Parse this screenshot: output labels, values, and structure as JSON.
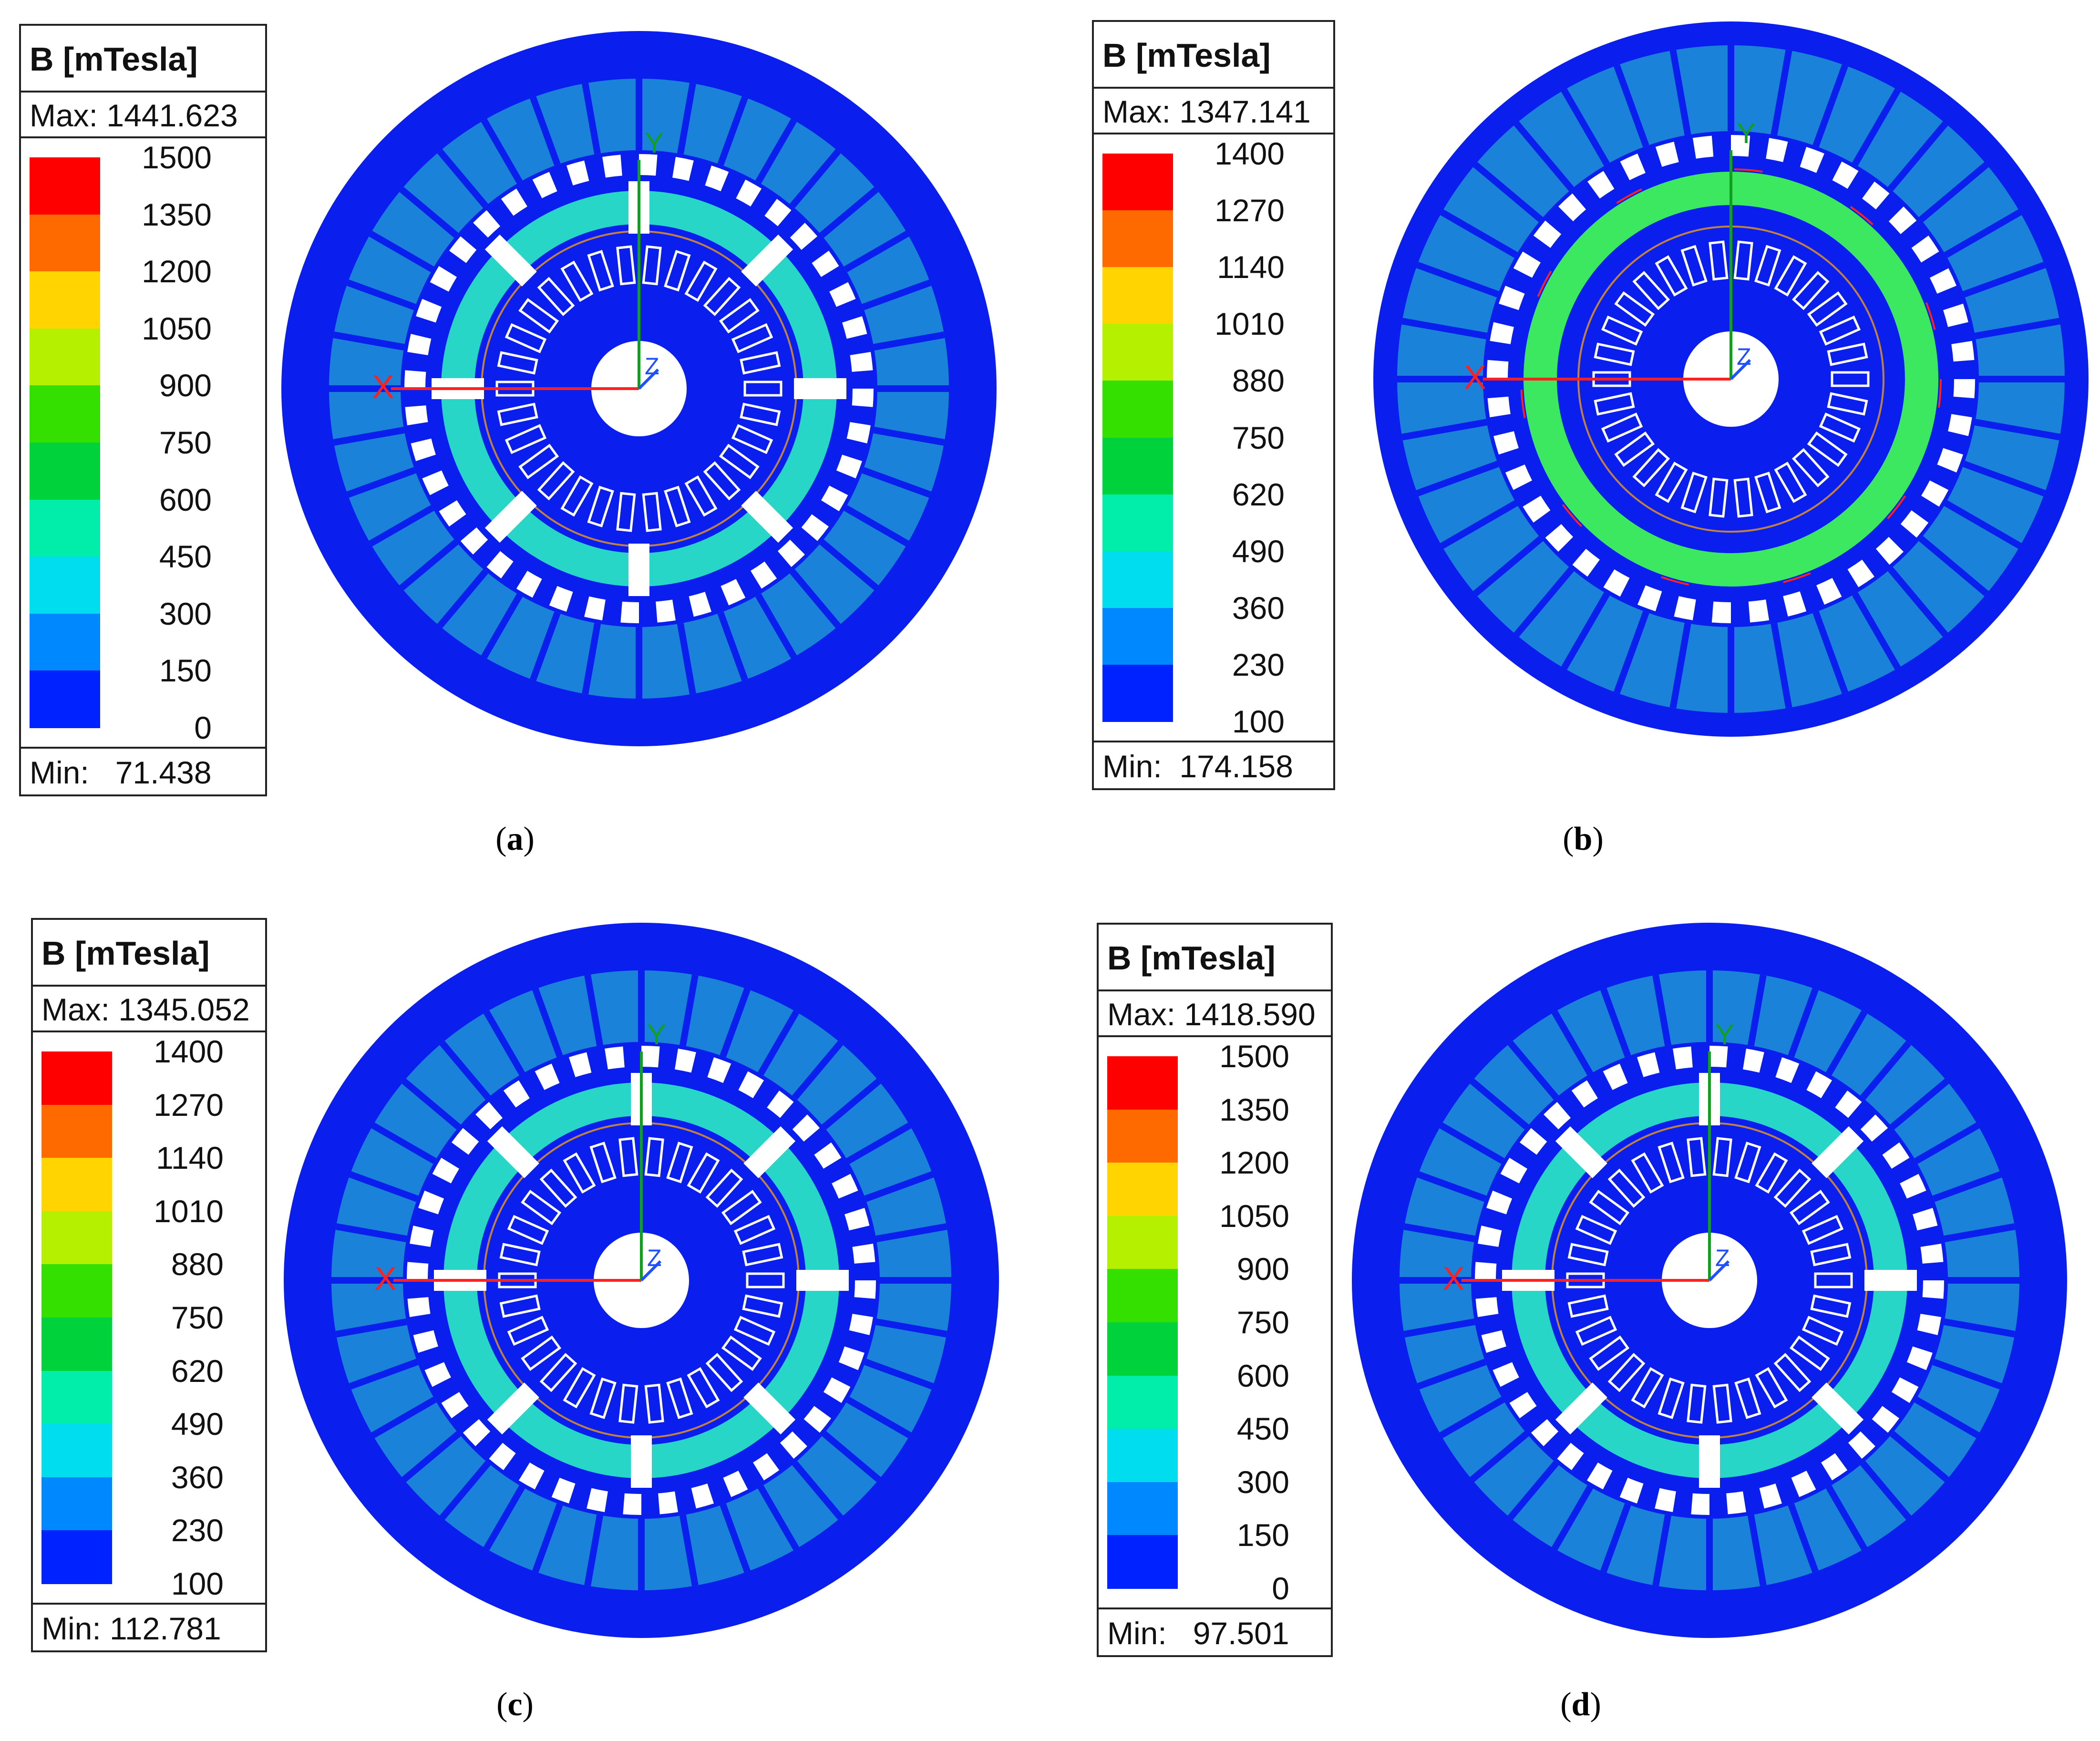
{
  "panels": [
    {
      "id": "a",
      "caption_letter": "a",
      "legend_title": "B [mTesla]",
      "max_label": "Max:",
      "max_value": "1441.623",
      "min_label": "Min:",
      "min_value": "71.438",
      "ticks": [
        "1500",
        "1350",
        "1200",
        "1050",
        "900",
        "750",
        "600",
        "450",
        "300",
        "150",
        "0"
      ]
    },
    {
      "id": "b",
      "caption_letter": "b",
      "legend_title": "B [mTesla]",
      "max_label": "Max:",
      "max_value": "1347.141",
      "min_label": "Min:",
      "min_value": "174.158",
      "ticks": [
        "1400",
        "1270",
        "1140",
        "1010",
        "880",
        "750",
        "620",
        "490",
        "360",
        "230",
        "100"
      ]
    },
    {
      "id": "c",
      "caption_letter": "c",
      "legend_title": "B [mTesla]",
      "max_label": "Max:",
      "max_value": "1345.052",
      "min_label": "Min:",
      "min_value": "112.781",
      "ticks": [
        "1400",
        "1270",
        "1140",
        "1010",
        "880",
        "750",
        "620",
        "490",
        "360",
        "230",
        "100"
      ]
    },
    {
      "id": "d",
      "caption_letter": "d",
      "legend_title": "B [mTesla]",
      "max_label": "Max:",
      "max_value": "1418.590",
      "min_label": "Min:",
      "min_value": "97.501",
      "ticks": [
        "1500",
        "1350",
        "1200",
        "1050",
        "900",
        "750",
        "600",
        "450",
        "300",
        "150",
        "0"
      ]
    }
  ],
  "colors": {
    "scale": [
      "#ff0000",
      "#ff6a00",
      "#ffd400",
      "#b4f000",
      "#33e000",
      "#00d23c",
      "#00eeaa",
      "#00ddee",
      "#0088ff",
      "#0022ff"
    ],
    "background_blue": "#0a1fee",
    "field_cyan": "#28d6c8",
    "field_green": "#3be860",
    "axis_red": "#ff2020",
    "axis_green": "#10a020"
  },
  "axis_labels": {
    "x": "X",
    "y": "Y",
    "z": "Z"
  }
}
